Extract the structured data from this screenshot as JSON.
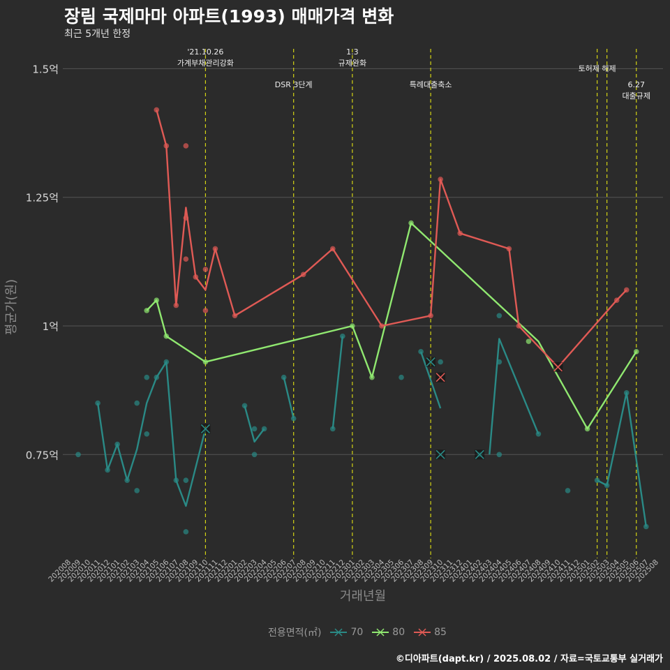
{
  "header": {
    "title": "장림 국제마마 아파트(1993) 매매가격 변화",
    "subtitle": "최근 5개년 한정"
  },
  "caption": "©디아파트(dapt.kr) / 2025.08.02 / 자료=국토교통부 실거래가",
  "colors": {
    "background": "#2b2b2b",
    "s70": "#2a8a86",
    "s80": "#90e870",
    "s85": "#e05a55",
    "event_line": "#d4d414",
    "grid": "#555555"
  },
  "chart_data": {
    "type": "line",
    "title": "장림 국제마마 아파트(1993) 매매가격 변화",
    "subtitle": "최근 5개년 한정",
    "xlabel": "거래년월",
    "ylabel": "평균가(원)",
    "ylim": [
      0.55,
      1.52
    ],
    "y_ticks": [
      0.75,
      1.0,
      1.25,
      1.5
    ],
    "y_tick_labels": [
      "0.75억",
      "1억",
      "1.25억",
      "1.5억"
    ],
    "x_ticks": [
      "202008",
      "202009",
      "202010",
      "202011",
      "202012",
      "202101",
      "202102",
      "202103",
      "202104",
      "202105",
      "202106",
      "202107",
      "202108",
      "202109",
      "202110",
      "202111",
      "202112",
      "202201",
      "202202",
      "202203",
      "202204",
      "202205",
      "202206",
      "202207",
      "202208",
      "202209",
      "202210",
      "202211",
      "202212",
      "202301",
      "202302",
      "202303",
      "202304",
      "202305",
      "202306",
      "202307",
      "202308",
      "202309",
      "202310",
      "202311",
      "202312",
      "202401",
      "202402",
      "202403",
      "202404",
      "202405",
      "202406",
      "202407",
      "202408",
      "202409",
      "202410",
      "202411",
      "202412",
      "202501",
      "202502",
      "202503",
      "202504",
      "202505",
      "202506",
      "202507",
      "202508"
    ],
    "legend_title": "전용면적(㎡)",
    "legend_position": "bottom",
    "grid": true,
    "series": [
      {
        "name": "70",
        "color": "#2a8a86",
        "line": [
          [
            "202011",
            0.85
          ],
          [
            "202012",
            0.72
          ],
          [
            "202101",
            0.77
          ],
          [
            "202102",
            0.7
          ],
          [
            "202103",
            0.76
          ],
          [
            "202104",
            0.85
          ],
          [
            "202105",
            0.9
          ],
          [
            "202106",
            0.93
          ],
          [
            "202107",
            0.7
          ],
          [
            "202108",
            0.65
          ],
          [
            "202110",
            0.8
          ],
          [
            null,
            null
          ],
          [
            "202202",
            0.845
          ],
          [
            "202203",
            0.775
          ],
          [
            "202204",
            0.8
          ],
          [
            null,
            null
          ],
          [
            "202206",
            0.9
          ],
          [
            "202207",
            0.82
          ],
          [
            null,
            null
          ],
          [
            "202211",
            0.8
          ],
          [
            "202212",
            0.98
          ],
          [
            null,
            null
          ],
          [
            "202308",
            0.95
          ],
          [
            "202310",
            0.84
          ],
          [
            null,
            null
          ],
          [
            "202403",
            0.75
          ],
          [
            "202404",
            0.975
          ],
          [
            "202408",
            0.79
          ],
          [
            null,
            null
          ],
          [
            "202502",
            0.7
          ],
          [
            "202503",
            0.69
          ],
          [
            "202505",
            0.87
          ],
          [
            "202507",
            0.61
          ]
        ],
        "points": [
          [
            "202009",
            0.75
          ],
          [
            "202011",
            0.85
          ],
          [
            "202012",
            0.72
          ],
          [
            "202101",
            0.77
          ],
          [
            "202102",
            0.7
          ],
          [
            "202103",
            0.85
          ],
          [
            "202103",
            0.68
          ],
          [
            "202104",
            0.9
          ],
          [
            "202104",
            0.79
          ],
          [
            "202105",
            0.9
          ],
          [
            "202106",
            0.93
          ],
          [
            "202107",
            0.7
          ],
          [
            "202108",
            0.7
          ],
          [
            "202108",
            0.6
          ],
          [
            "202202",
            0.845
          ],
          [
            "202203",
            0.8
          ],
          [
            "202203",
            0.75
          ],
          [
            "202204",
            0.8
          ],
          [
            "202206",
            0.9
          ],
          [
            "202207",
            0.82
          ],
          [
            "202211",
            0.8
          ],
          [
            "202212",
            0.98
          ],
          [
            "202306",
            0.9
          ],
          [
            "202308",
            0.95
          ],
          [
            "202310",
            0.93
          ],
          [
            "202402",
            0.75
          ],
          [
            "202404",
            1.02
          ],
          [
            "202404",
            0.93
          ],
          [
            "202404",
            0.75
          ],
          [
            "202408",
            0.79
          ],
          [
            "202411",
            0.68
          ],
          [
            "202502",
            0.7
          ],
          [
            "202503",
            0.69
          ],
          [
            "202505",
            0.87
          ],
          [
            "202507",
            0.61
          ]
        ],
        "cancelled": [
          [
            "202110",
            0.8
          ],
          [
            "202309",
            0.93
          ],
          [
            "202310",
            0.75
          ],
          [
            "202402",
            0.75
          ]
        ]
      },
      {
        "name": "80",
        "color": "#90e870",
        "line": [
          [
            "202104",
            1.03
          ],
          [
            "202105",
            1.05
          ],
          [
            "202106",
            0.98
          ],
          [
            "202110",
            0.93
          ],
          [
            "202301",
            1.0
          ],
          [
            "202303",
            0.9
          ],
          [
            "202307",
            1.2
          ],
          [
            "202408",
            0.97
          ],
          [
            "202501",
            0.8
          ],
          [
            "202506",
            0.95
          ]
        ],
        "points": [
          [
            "202104",
            1.03
          ],
          [
            "202105",
            1.05
          ],
          [
            "202106",
            0.98
          ],
          [
            "202110",
            0.93
          ],
          [
            "202301",
            1.0
          ],
          [
            "202303",
            0.9
          ],
          [
            "202307",
            1.2
          ],
          [
            "202407",
            0.97
          ],
          [
            "202501",
            0.8
          ],
          [
            "202506",
            0.95
          ]
        ],
        "cancelled": []
      },
      {
        "name": "85",
        "color": "#e05a55",
        "line": [
          [
            "202105",
            1.42
          ],
          [
            "202106",
            1.35
          ],
          [
            "202107",
            1.04
          ],
          [
            "202108",
            1.23
          ],
          [
            "202109",
            1.095
          ],
          [
            "202110",
            1.07
          ],
          [
            "202111",
            1.15
          ],
          [
            "202201",
            1.02
          ],
          [
            "202208",
            1.1
          ],
          [
            "202211",
            1.15
          ],
          [
            "202304",
            1.0
          ],
          [
            "202309",
            1.02
          ],
          [
            "202310",
            1.285
          ],
          [
            "202312",
            1.18
          ],
          [
            "202405",
            1.15
          ],
          [
            "202406",
            1.0
          ],
          [
            "202410",
            0.92
          ],
          [
            "202504",
            1.05
          ],
          [
            "202505",
            1.07
          ]
        ],
        "points": [
          [
            "202105",
            1.42
          ],
          [
            "202106",
            1.35
          ],
          [
            "202107",
            1.04
          ],
          [
            "202108",
            1.35
          ],
          [
            "202108",
            1.21
          ],
          [
            "202108",
            1.13
          ],
          [
            "202109",
            1.095
          ],
          [
            "202110",
            1.11
          ],
          [
            "202110",
            1.03
          ],
          [
            "202111",
            1.15
          ],
          [
            "202201",
            1.02
          ],
          [
            "202208",
            1.1
          ],
          [
            "202211",
            1.15
          ],
          [
            "202304",
            1.0
          ],
          [
            "202309",
            1.02
          ],
          [
            "202310",
            1.285
          ],
          [
            "202312",
            1.18
          ],
          [
            "202405",
            1.15
          ],
          [
            "202406",
            1.0
          ],
          [
            "202504",
            1.05
          ],
          [
            "202505",
            1.07
          ]
        ],
        "cancelled": [
          [
            "202310",
            0.9
          ],
          [
            "202410",
            0.92
          ]
        ]
      }
    ],
    "annotations": [
      {
        "x": "202110",
        "lines": [
          "'21.10.26",
          "가계부채관리강화"
        ],
        "level": 0
      },
      {
        "x": "202207",
        "lines": [
          "DSR 3단계"
        ],
        "level": 1
      },
      {
        "x": "202301",
        "lines": [
          "1.3",
          "규제완화"
        ],
        "level": 0
      },
      {
        "x": "202309",
        "lines": [
          "특례대출축소"
        ],
        "level": 1
      },
      {
        "x": "202502",
        "lines": [
          "토허제 해제"
        ],
        "level": 0
      },
      {
        "x": "202503",
        "lines": [],
        "level": 0
      },
      {
        "x": "202506",
        "lines": [
          "6.27",
          "대출규제"
        ],
        "level": 1
      }
    ]
  }
}
